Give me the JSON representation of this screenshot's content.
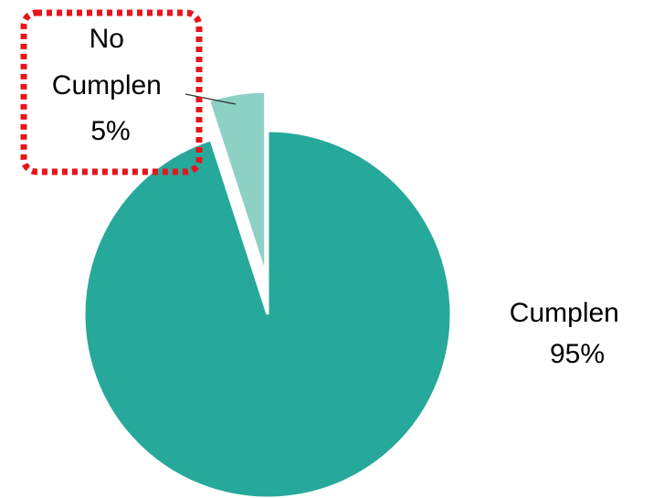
{
  "chart_data": {
    "type": "pie",
    "categories": [
      "Cumplen",
      "No Cumplen"
    ],
    "values": [
      95,
      5
    ],
    "colors": [
      "#26a99a",
      "#8dd1c4"
    ],
    "exploded_slice": "No Cumplen",
    "labels": [
      {
        "category_lines": [
          "Cumplen"
        ],
        "value": "95%"
      },
      {
        "category_lines": [
          "No",
          "Cumplen"
        ],
        "value": "5%"
      }
    ],
    "highlight": {
      "target": "No Cumplen",
      "style": "dotted-rounded-box",
      "color": "#e8141b"
    }
  }
}
